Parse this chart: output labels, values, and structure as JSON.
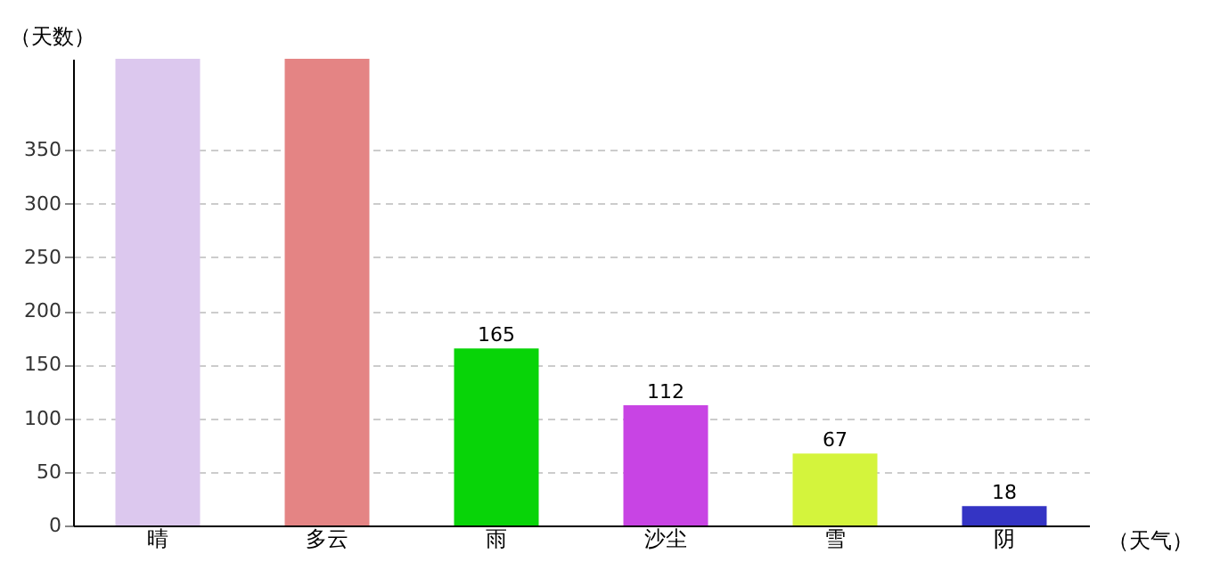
{
  "chart_data": {
    "type": "bar",
    "xlabel": "（天气）",
    "ylabel": "（天数）",
    "categories": [
      "晴",
      "多云",
      "雨",
      "沙尘",
      "雪",
      "阴"
    ],
    "values": [
      435,
      435,
      165,
      112,
      67,
      18
    ],
    "value_labels": [
      null,
      null,
      "165",
      "112",
      "67",
      "18"
    ],
    "colors": [
      "#dcc8ee",
      "#e48484",
      "#08d408",
      "#c844e4",
      "#d4f43c",
      "#3434c4"
    ],
    "ylim": [
      0,
      435
    ],
    "yticks": [
      0,
      50,
      100,
      150,
      200,
      250,
      300,
      350
    ],
    "grid": "y"
  }
}
